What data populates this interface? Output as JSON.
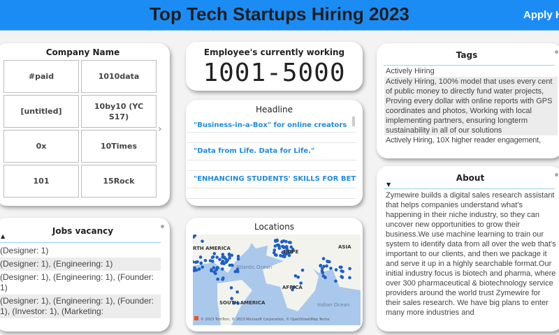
{
  "header": {
    "title": "Top Tech Startups Hiring 2023",
    "apply_label": "Apply H"
  },
  "company": {
    "title": "Company Name",
    "cells": [
      "#paid",
      "1010data",
      "[untitled]",
      "10by10 (YC S17)",
      "0x",
      "10Times",
      "101",
      "15Rock"
    ]
  },
  "employees": {
    "title": "Employee's currently working",
    "value": "1001-5000"
  },
  "headline": {
    "title": "Headline",
    "items": [
      "\"Business-in-a-Box\" for online creators",
      "\"Data from Life. Data for Life.\"",
      "\"ENHANCING STUDENTS' SKILLS FOR BETTE..."
    ]
  },
  "jobs": {
    "title": "Jobs vacancy",
    "rows": [
      "(Designer: 1)",
      "(Designer: 1), (Engineering: 1)",
      "(Designer: 1), (Engineering: 1), (Founder: 1)",
      "(Designer: 1), (Engineering: 1), (Founder: 1), (Investor: 1), (Marketing:"
    ]
  },
  "locations": {
    "title": "Locations",
    "labels": {
      "na": "RTH AMERICA",
      "eu": "ROPE",
      "asia": "ASIA",
      "atlantic": "Atlantic Ocean",
      "africa": "AFRICA",
      "sa": "SOUTH AMERICA",
      "indian": "Indian Ocean"
    },
    "attribution": "© 2023 TomTom, © 2023 Microsoft Corporation, © OpenStreetMap  Terms"
  },
  "tags": {
    "title": "Tags",
    "rows": [
      "Actively Hiring",
      "Actively Hiring, 100% model that uses every cent of public money to directly fund water projects, Proving every dollar with online reports with GPS coordinates and photos, Working with local implementing partners, ensuring longterm sustainability in all of our solutions",
      "Actively Hiring, 10X higher reader engagement,"
    ]
  },
  "about": {
    "title": "About",
    "text": "Zymewire builds a digital sales research assistant that helps companies understand what's happening in their niche industry, so they can uncover new opportunities to grow their business.We use machine learning to train our system to identify data from all over the web that's important to our clients, and then we package it and serve it up in a highly searchable format.Our initial industry focus is biotech and pharma, where over 300 pharmaceutical & biotechnology service providers around the world trust Zymewire for their sales research. We have big plans to enter many more industries and"
  },
  "colors": {
    "header": "#1c8cf5",
    "link": "#1e8be0",
    "map_water": "#a9c8ec",
    "map_point": "#1d5fc9"
  }
}
